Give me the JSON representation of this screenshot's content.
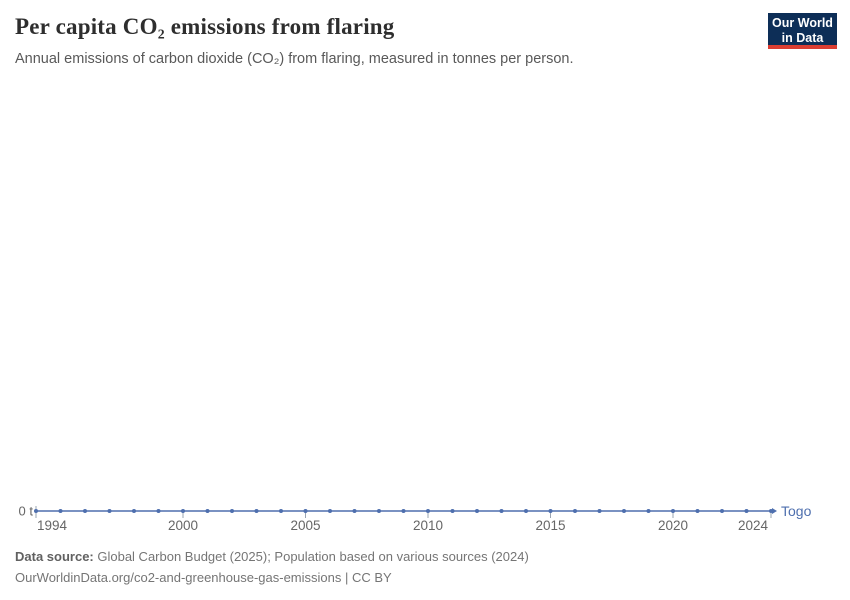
{
  "header": {
    "title": "Per capita CO₂ emissions from flaring",
    "subtitle": "Annual emissions of carbon dioxide (CO₂) from flaring, measured in tonnes per person.",
    "logo": {
      "line1": "Our World",
      "line2": "in Data",
      "bg_color": "#0d2e57",
      "accent_color": "#dc3e32"
    }
  },
  "chart_data": {
    "type": "line",
    "title": "Per capita CO₂ emissions from flaring",
    "xlabel": "",
    "ylabel": "",
    "y_zero_label": "0 t",
    "xlim": [
      1994,
      2024
    ],
    "ylim": [
      0,
      0
    ],
    "grid": false,
    "legend_position": "end-of-line",
    "x_ticks": [
      1994,
      2000,
      2005,
      2010,
      2015,
      2020,
      2024
    ],
    "x": [
      1994,
      1995,
      1996,
      1997,
      1998,
      1999,
      2000,
      2001,
      2002,
      2003,
      2004,
      2005,
      2006,
      2007,
      2008,
      2009,
      2010,
      2011,
      2012,
      2013,
      2014,
      2015,
      2016,
      2017,
      2018,
      2019,
      2020,
      2021,
      2022,
      2023,
      2024
    ],
    "series": [
      {
        "name": "Togo",
        "color": "#4e6fae",
        "values": [
          0,
          0,
          0,
          0,
          0,
          0,
          0,
          0,
          0,
          0,
          0,
          0,
          0,
          0,
          0,
          0,
          0,
          0,
          0,
          0,
          0,
          0,
          0,
          0,
          0,
          0,
          0,
          0,
          0,
          0,
          0
        ]
      }
    ],
    "axis_text_color": "#666666",
    "tick_color": "#9aa4b2"
  },
  "footer": {
    "datasource_label": "Data source:",
    "datasource_text": " Global Carbon Budget (2025); Population based on various sources (2024)",
    "citation": "OurWorldinData.org/co2-and-greenhouse-gas-emissions | CC BY"
  }
}
